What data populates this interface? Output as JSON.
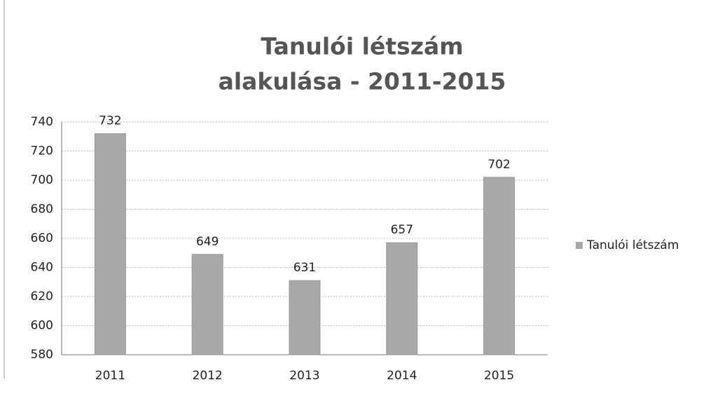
{
  "chart_data": {
    "type": "bar",
    "title": [
      "Tanulói létszám",
      "alakulása - 2011-2015"
    ],
    "categories": [
      "2011",
      "2012",
      "2013",
      "2014",
      "2015"
    ],
    "series": [
      {
        "name": "Tanulói létszám",
        "color": "#a8a8a8",
        "values": [
          732,
          649,
          631,
          657,
          702
        ]
      }
    ],
    "ylim": [
      580,
      740
    ],
    "yticks": [
      580,
      600,
      620,
      640,
      660,
      680,
      700,
      720,
      740
    ],
    "grid": true,
    "legend": "right",
    "data_labels": true
  }
}
